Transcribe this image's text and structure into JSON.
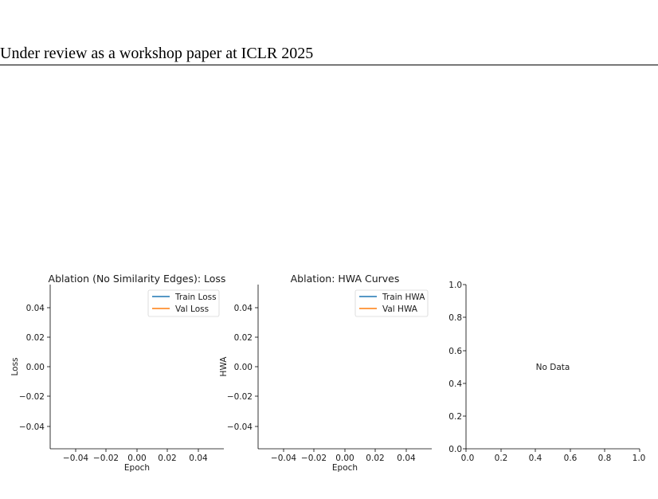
{
  "header": {
    "text": "Under review as a workshop paper at ICLR 2025"
  },
  "chart_data": [
    {
      "type": "line",
      "title": "Ablation (No Similarity Edges): Loss",
      "xlabel": "Epoch",
      "ylabel": "Loss",
      "xlim": [
        -0.055,
        0.055
      ],
      "ylim": [
        -0.055,
        0.055
      ],
      "xticks": [
        "−0.04",
        "−0.02",
        "0.00",
        "0.02",
        "0.04"
      ],
      "yticks": [
        "−0.04",
        "−0.02",
        "0.00",
        "0.02",
        "0.04"
      ],
      "legend_position": "top-right",
      "series": [
        {
          "name": "Train Loss",
          "color": "#1f77b4",
          "x": [],
          "y": []
        },
        {
          "name": "Val Loss",
          "color": "#ff7f0e",
          "x": [],
          "y": []
        }
      ],
      "grid": false
    },
    {
      "type": "line",
      "title": "Ablation: HWA Curves",
      "xlabel": "Epoch",
      "ylabel": "HWA",
      "xlim": [
        -0.055,
        0.055
      ],
      "ylim": [
        -0.055,
        0.055
      ],
      "xticks": [
        "−0.04",
        "−0.02",
        "0.00",
        "0.02",
        "0.04"
      ],
      "yticks": [
        "−0.04",
        "−0.02",
        "0.00",
        "0.02",
        "0.04"
      ],
      "legend_position": "top-right",
      "series": [
        {
          "name": "Train HWA",
          "color": "#1f77b4",
          "x": [],
          "y": []
        },
        {
          "name": "Val HWA",
          "color": "#ff7f0e",
          "x": [],
          "y": []
        }
      ],
      "grid": false
    },
    {
      "type": "line",
      "title": "",
      "xlabel": "",
      "ylabel": "",
      "xlim": [
        0.0,
        1.0
      ],
      "ylim": [
        0.0,
        1.0
      ],
      "xticks": [
        "0.0",
        "0.2",
        "0.4",
        "0.6",
        "0.8",
        "1.0"
      ],
      "yticks": [
        "0.0",
        "0.2",
        "0.4",
        "0.6",
        "0.8",
        "1.0"
      ],
      "annotation": "No Data",
      "series": [],
      "grid": false
    }
  ]
}
